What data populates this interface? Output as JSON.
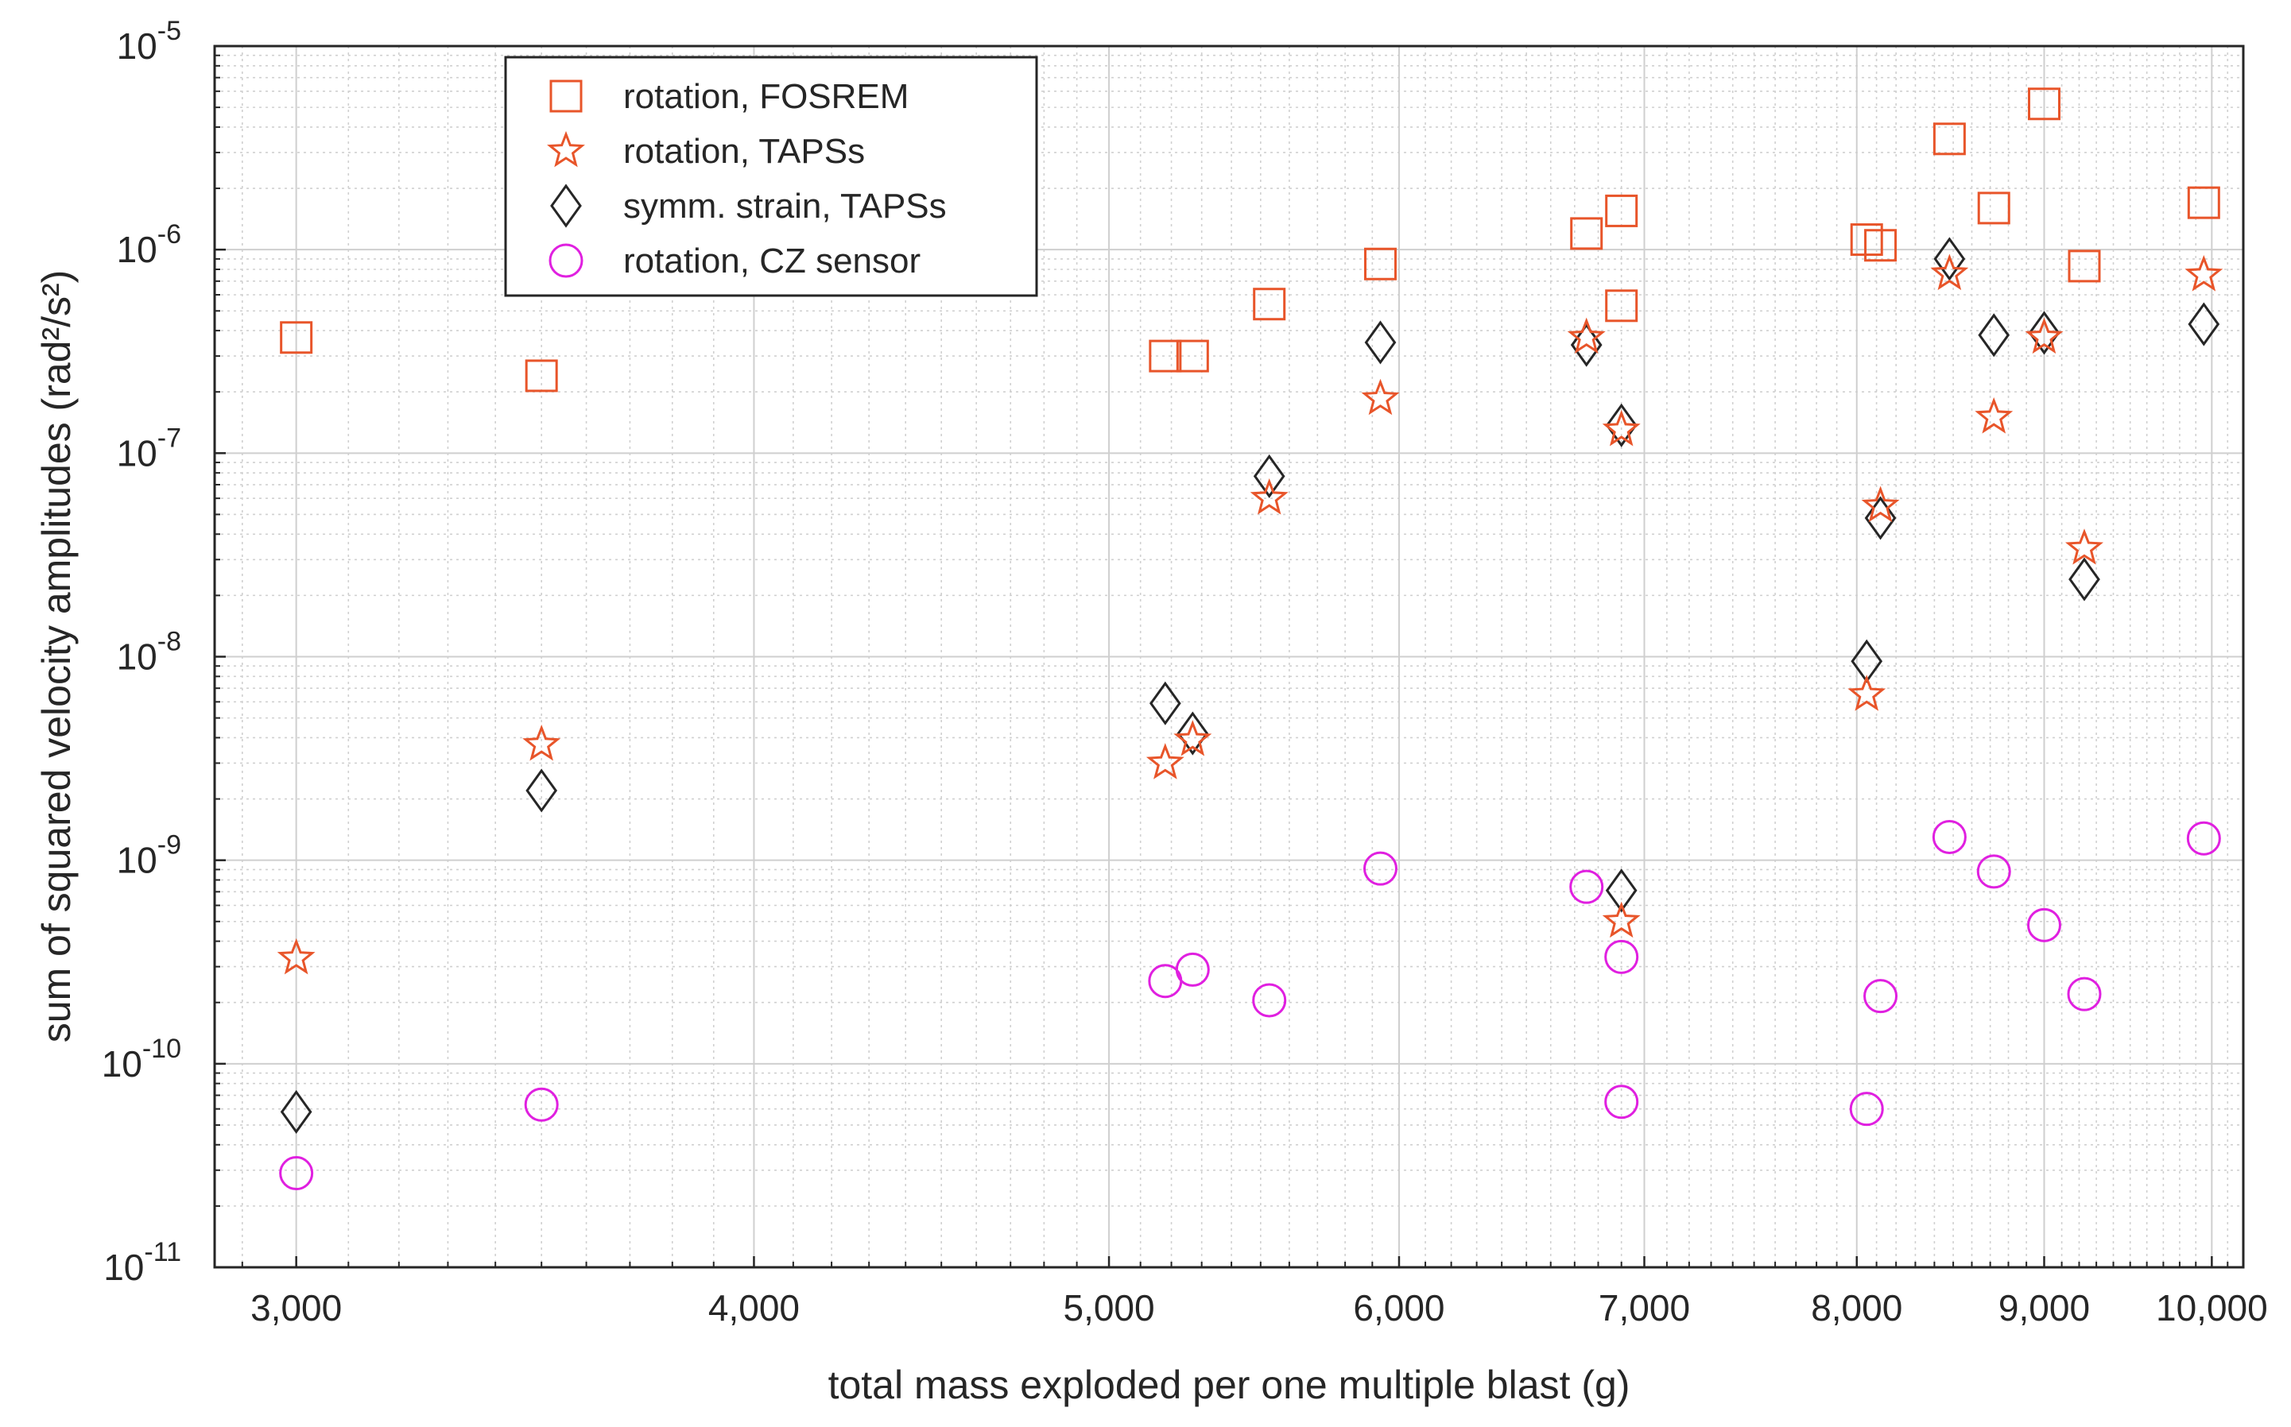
{
  "chart_data": {
    "type": "scatter",
    "title": "",
    "xlabel": "total mass exploded per one multiple blast (g)",
    "ylabel_text": "sum of squared velocity amplitudes",
    "ylabel_units": "(rad²/s²)",
    "xscale": "log",
    "yscale": "log",
    "xlim": [
      2850,
      10200
    ],
    "ylim": [
      1e-11,
      1e-05
    ],
    "grid": true,
    "minor_grid": true,
    "legend_position": "top-left",
    "x_ticks": [
      3000,
      4000,
      5000,
      6000,
      7000,
      8000,
      9000,
      10000
    ],
    "x_tick_labels": [
      "3,000",
      "4,000",
      "5,000",
      "6,000",
      "7,000",
      "8,000",
      "9,000",
      "10,000"
    ],
    "y_ticks": [
      {
        "value": 1e-11,
        "base": "10",
        "exp": "-11"
      },
      {
        "value": 1e-10,
        "base": "10",
        "exp": "-10"
      },
      {
        "value": 1e-09,
        "base": "10",
        "exp": "-9"
      },
      {
        "value": 1e-08,
        "base": "10",
        "exp": "-8"
      },
      {
        "value": 1e-07,
        "base": "10",
        "exp": "-7"
      },
      {
        "value": 1e-06,
        "base": "10",
        "exp": "-6"
      },
      {
        "value": 1e-05,
        "base": "10",
        "exp": "-5"
      }
    ],
    "series": [
      {
        "name": "rotation, FOSREM",
        "marker": "square",
        "color": "#E8552A",
        "points": [
          [
            3000,
            3.7e-07
          ],
          [
            3500,
            2.4e-07
          ],
          [
            5180,
            3e-07
          ],
          [
            5270,
            3e-07
          ],
          [
            5530,
            5.4e-07
          ],
          [
            5930,
            8.5e-07
          ],
          [
            6750,
            1.2e-06
          ],
          [
            6900,
            5.3e-07
          ],
          [
            6900,
            1.55e-06
          ],
          [
            8050,
            1.12e-06
          ],
          [
            8120,
            1.05e-06
          ],
          [
            8480,
            3.5e-06
          ],
          [
            8720,
            1.6e-06
          ],
          [
            9000,
            5.2e-06
          ],
          [
            9230,
            8.3e-07
          ],
          [
            9950,
            1.7e-06
          ]
        ]
      },
      {
        "name": "rotation, TAPSs",
        "marker": "star",
        "color": "#E8552A",
        "points": [
          [
            3000,
            3.3e-10
          ],
          [
            3500,
            3.7e-09
          ],
          [
            5180,
            3e-09
          ],
          [
            5270,
            3.9e-09
          ],
          [
            5530,
            6e-08
          ],
          [
            5930,
            1.85e-07
          ],
          [
            6750,
            3.7e-07
          ],
          [
            6900,
            1.3e-07
          ],
          [
            6900,
            5e-10
          ],
          [
            8050,
            6.5e-09
          ],
          [
            8120,
            5.5e-08
          ],
          [
            8480,
            7.6e-07
          ],
          [
            8720,
            1.5e-07
          ],
          [
            9000,
            3.7e-07
          ],
          [
            9230,
            3.4e-08
          ],
          [
            9950,
            7.5e-07
          ]
        ]
      },
      {
        "name": "symm. strain, TAPSs",
        "marker": "diamond",
        "color": "#262626",
        "points": [
          [
            3000,
            5.8e-11
          ],
          [
            3500,
            2.2e-09
          ],
          [
            5180,
            5.9e-09
          ],
          [
            5270,
            4.2e-09
          ],
          [
            5530,
            7.7e-08
          ],
          [
            5930,
            3.5e-07
          ],
          [
            6750,
            3.4e-07
          ],
          [
            6900,
            1.37e-07
          ],
          [
            6900,
            7.1e-10
          ],
          [
            8050,
            9.5e-09
          ],
          [
            8120,
            4.8e-08
          ],
          [
            8480,
            9e-07
          ],
          [
            8720,
            3.8e-07
          ],
          [
            9000,
            3.9e-07
          ],
          [
            9230,
            2.4e-08
          ],
          [
            9950,
            4.3e-07
          ]
        ]
      },
      {
        "name": "rotation, CZ sensor",
        "marker": "circle",
        "color": "#E020E0",
        "points": [
          [
            3000,
            2.9e-11
          ],
          [
            3500,
            6.3e-11
          ],
          [
            5180,
            2.55e-10
          ],
          [
            5270,
            2.9e-10
          ],
          [
            5530,
            2.05e-10
          ],
          [
            5930,
            9.1e-10
          ],
          [
            6750,
            7.4e-10
          ],
          [
            6900,
            3.35e-10
          ],
          [
            6900,
            6.5e-11
          ],
          [
            8050,
            6e-11
          ],
          [
            8120,
            2.15e-10
          ],
          [
            8480,
            1.3e-09
          ],
          [
            8720,
            8.8e-10
          ],
          [
            9000,
            4.8e-10
          ],
          [
            9230,
            2.2e-10
          ],
          [
            9950,
            1.28e-09
          ]
        ]
      }
    ]
  }
}
